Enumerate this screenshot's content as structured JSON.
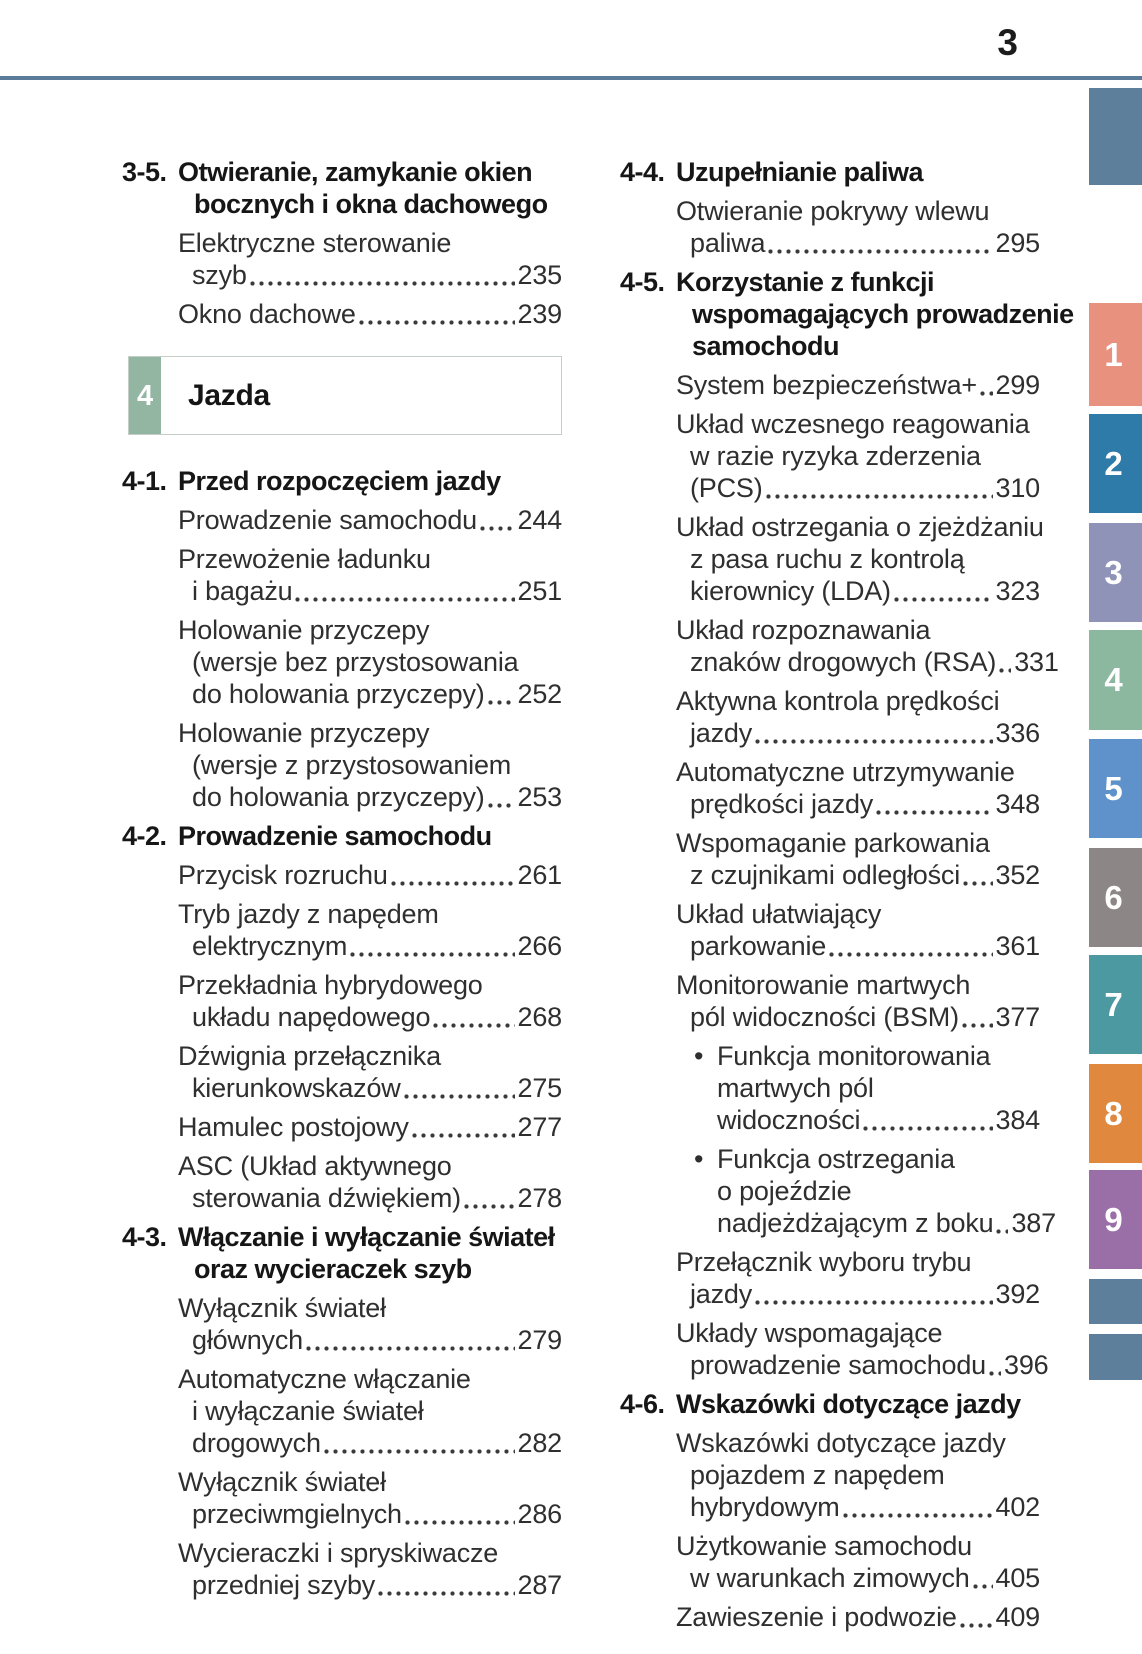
{
  "page": {
    "number": "3"
  },
  "colors": {
    "header_rule": "#5a7c98",
    "text": "#2f2f2f",
    "heading_text": "#161616",
    "chapter_accent": "#93b6a2",
    "tab_blank": "#5d7f9b"
  },
  "chapter_box": {
    "num": "4",
    "title": "Jazda"
  },
  "columns": {
    "left": [
      {
        "type": "section",
        "num": "3-5.",
        "lines": [
          "Otwieranie, zamykanie okien",
          "bocznych i okna dachowego"
        ]
      },
      {
        "type": "entry",
        "lines": [
          "Elektryczne sterowanie",
          "szyb"
        ],
        "page": "235"
      },
      {
        "type": "entry",
        "lines": [
          "Okno dachowe"
        ],
        "page": "239"
      },
      {
        "type": "chapter",
        "num": "4",
        "title": "Jazda"
      },
      {
        "type": "section",
        "num": "4-1.",
        "lines": [
          "Przed rozpoczęciem jazdy"
        ]
      },
      {
        "type": "entry",
        "lines": [
          "Prowadzenie samochodu"
        ],
        "page": "244"
      },
      {
        "type": "entry",
        "lines": [
          "Przewożenie ładunku",
          "i bagażu"
        ],
        "page": "251"
      },
      {
        "type": "entry",
        "lines": [
          "Holowanie przyczepy",
          "(wersje bez przystosowania",
          "do holowania przyczepy)"
        ],
        "page": "252"
      },
      {
        "type": "entry",
        "lines": [
          "Holowanie przyczepy",
          "(wersje z przystosowaniem",
          "do holowania przyczepy)"
        ],
        "page": "253"
      },
      {
        "type": "section",
        "num": "4-2.",
        "lines": [
          "Prowadzenie samochodu"
        ]
      },
      {
        "type": "entry",
        "lines": [
          "Przycisk rozruchu"
        ],
        "page": "261"
      },
      {
        "type": "entry",
        "lines": [
          "Tryb jazdy z napędem",
          "elektrycznym"
        ],
        "page": "266"
      },
      {
        "type": "entry",
        "lines": [
          "Przekładnia hybrydowego",
          "układu napędowego"
        ],
        "page": "268"
      },
      {
        "type": "entry",
        "lines": [
          "Dźwignia przełącznika",
          "kierunkowskazów"
        ],
        "page": "275"
      },
      {
        "type": "entry",
        "lines": [
          "Hamulec postojowy"
        ],
        "page": "277"
      },
      {
        "type": "entry",
        "lines": [
          "ASC (Układ aktywnego",
          "sterowania dźwiękiem)"
        ],
        "page": "278"
      },
      {
        "type": "section",
        "num": "4-3.",
        "lines": [
          "Włączanie i wyłączanie świateł",
          "oraz wycieraczek szyb"
        ]
      },
      {
        "type": "entry",
        "lines": [
          "Wyłącznik świateł",
          "głównych"
        ],
        "page": "279"
      },
      {
        "type": "entry",
        "lines": [
          "Automatyczne włączanie",
          "i wyłączanie świateł",
          "drogowych"
        ],
        "page": "282"
      },
      {
        "type": "entry",
        "lines": [
          "Wyłącznik świateł",
          "przeciwmgielnych"
        ],
        "page": "286"
      },
      {
        "type": "entry",
        "lines": [
          "Wycieraczki i spryskiwacze",
          "przedniej szyby"
        ],
        "page": "287"
      }
    ],
    "right": [
      {
        "type": "section",
        "num": "4-4.",
        "lines": [
          "Uzupełnianie paliwa"
        ]
      },
      {
        "type": "entry",
        "lines": [
          "Otwieranie pokrywy wlewu",
          "paliwa"
        ],
        "page": "295"
      },
      {
        "type": "section",
        "num": "4-5.",
        "lines": [
          "Korzystanie z funkcji",
          "wspomagających prowadzenie",
          "samochodu"
        ]
      },
      {
        "type": "entry",
        "lines": [
          "System bezpieczeństwa+"
        ],
        "page": "299"
      },
      {
        "type": "entry",
        "lines": [
          "Układ wczesnego reagowania",
          "w razie ryzyka zderzenia",
          "(PCS)"
        ],
        "page": "310"
      },
      {
        "type": "entry",
        "lines": [
          "Układ ostrzegania o zjeżdżaniu",
          "z pasa ruchu z kontrolą",
          "kierownicy (LDA)"
        ],
        "page": "323"
      },
      {
        "type": "entry",
        "lines": [
          "Układ rozpoznawania",
          "znaków drogowych (RSA)"
        ],
        "page": "331"
      },
      {
        "type": "entry",
        "lines": [
          "Aktywna kontrola prędkości",
          "jazdy"
        ],
        "page": "336"
      },
      {
        "type": "entry",
        "lines": [
          "Automatyczne utrzymywanie",
          "prędkości jazdy"
        ],
        "page": "348"
      },
      {
        "type": "entry",
        "lines": [
          "Wspomaganie parkowania",
          "z czujnikami odległości"
        ],
        "page": "352"
      },
      {
        "type": "entry",
        "lines": [
          "Układ ułatwiający",
          "parkowanie"
        ],
        "page": "361"
      },
      {
        "type": "entry",
        "lines": [
          "Monitorowanie martwych",
          "pól widoczności (BSM)"
        ],
        "page": "377"
      },
      {
        "type": "bullet",
        "lines": [
          "Funkcja monitorowania",
          "martwych pól",
          "widoczności"
        ],
        "page": "384"
      },
      {
        "type": "bullet",
        "lines": [
          "Funkcja ostrzegania",
          "o pojeździe",
          "nadjeżdżającym z boku"
        ],
        "page": "387"
      },
      {
        "type": "entry",
        "lines": [
          "Przełącznik wyboru trybu",
          "jazdy"
        ],
        "page": "392"
      },
      {
        "type": "entry",
        "lines": [
          "Układy wspomagające",
          "prowadzenie samochodu"
        ],
        "page": "396"
      },
      {
        "type": "section",
        "num": "4-6.",
        "lines": [
          "Wskazówki dotyczące jazdy"
        ]
      },
      {
        "type": "entry",
        "lines": [
          "Wskazówki dotyczące jazdy",
          "pojazdem z napędem",
          "hybrydowym"
        ],
        "page": "402"
      },
      {
        "type": "entry",
        "lines": [
          "Użytkowanie samochodu",
          "w warunkach zimowych"
        ],
        "page": "405"
      },
      {
        "type": "entry",
        "lines": [
          "Zawieszenie i podwozie"
        ],
        "page": "409"
      }
    ]
  },
  "side_tabs": [
    {
      "label": "",
      "color": "#5d7f9b"
    },
    {
      "label": "1",
      "color": "#e9917f"
    },
    {
      "label": "2",
      "color": "#2e7aa8"
    },
    {
      "label": "3",
      "color": "#8f93b7"
    },
    {
      "label": "4",
      "color": "#8cb8a0"
    },
    {
      "label": "5",
      "color": "#5f91cb"
    },
    {
      "label": "6",
      "color": "#8d8686"
    },
    {
      "label": "7",
      "color": "#4d99a1"
    },
    {
      "label": "8",
      "color": "#e0883e"
    },
    {
      "label": "9",
      "color": "#9a6fa7"
    },
    {
      "label": "",
      "color": "#5d7f9b"
    },
    {
      "label": "",
      "color": "#5d7f9b"
    }
  ]
}
